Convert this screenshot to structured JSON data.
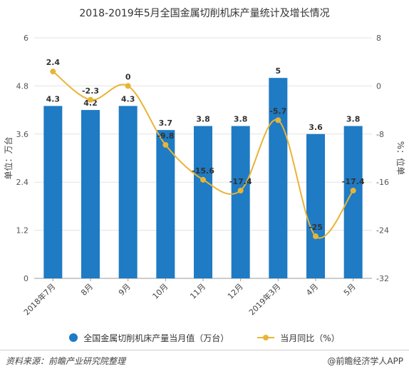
{
  "chart_data": {
    "type": "bar",
    "title": "2018-2019年5月全国金属切削机床产量统计及增长情况",
    "categories": [
      "2018年7月",
      "8月",
      "9月",
      "10月",
      "11月",
      "12月",
      "2019年3月",
      "4月",
      "5月"
    ],
    "series": [
      {
        "name": "全国金属切削机床产量当月值（万台）",
        "type": "bar",
        "axis": "left",
        "color": "#1E7BC4",
        "values": [
          4.3,
          4.2,
          4.3,
          3.7,
          3.8,
          3.8,
          5.0,
          3.6,
          3.8
        ],
        "labels": [
          "4.3",
          "4.2",
          "4.3",
          "3.7",
          "3.8",
          "3.8",
          "5",
          "3.6",
          "3.8"
        ]
      },
      {
        "name": "当月同比（%）",
        "type": "line",
        "axis": "right",
        "color": "#E9B436",
        "values": [
          2.4,
          -2.3,
          0,
          -9.8,
          -15.6,
          -17.4,
          -5.7,
          -25,
          -17.4
        ],
        "labels": [
          "2.4",
          "-2.3",
          "0",
          "-9.8",
          "-15.6",
          "-17.4",
          "-5.7",
          "-25",
          "-17.4"
        ]
      }
    ],
    "ylabel": "单位：万台",
    "ylabel_right": "%：位单",
    "ylim": [
      0,
      6
    ],
    "yticks": [
      0,
      1.2,
      2.4,
      3.6,
      4.8,
      6
    ],
    "ytick_labels": [
      "0",
      "1.2",
      "2.4",
      "3.6",
      "4.8",
      "6"
    ],
    "ylim_right": [
      -32,
      8
    ],
    "yticks_right": [
      -32,
      -24,
      -16,
      -8,
      0,
      8
    ],
    "ytick_labels_right": [
      "-32",
      "-24",
      "-16",
      "-8",
      "0",
      "8"
    ],
    "grid": true,
    "legend": "bottom"
  },
  "legend": {
    "bar_label": "全国金属切削机床产量当月值（万台）",
    "line_label": "当月同比（%）"
  },
  "footer": {
    "source": "资料来源：前瞻产业研究院整理",
    "credit": "@前瞻经济学人APP"
  }
}
